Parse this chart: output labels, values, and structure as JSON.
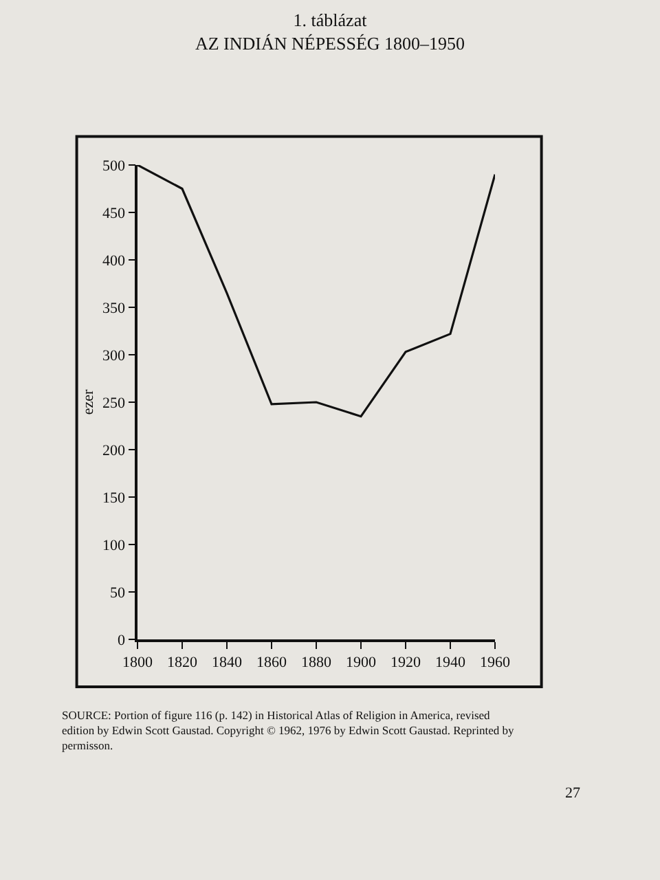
{
  "chart_data": {
    "type": "line",
    "title": "1. táblázat",
    "subtitle": "AZ INDIÁN NÉPESSÉG 1800–1950",
    "ylabel": "ezer",
    "x": [
      1800,
      1820,
      1840,
      1860,
      1880,
      1900,
      1920,
      1940,
      1960
    ],
    "series": [
      {
        "color": "#111111",
        "values": [
          500,
          475,
          365,
          248,
          250,
          235,
          303,
          322,
          490
        ]
      }
    ],
    "xlim": [
      1800,
      1960
    ],
    "xticks": [
      1800,
      1820,
      1840,
      1860,
      1880,
      1900,
      1920,
      1940,
      1960
    ],
    "ylim": [
      0,
      500
    ],
    "yticks": [
      0,
      50,
      100,
      150,
      200,
      250,
      300,
      350,
      400,
      450,
      500
    ],
    "grid": false,
    "marker": "none",
    "line_style": "solid",
    "annotations": [
      "SOURCE: Portion of figure 116 (p. 142) in Historical Atlas of Religion in America, revised edition by Edwin Scott Gaustad. Copyright © 1962, 1976 by Edwin Scott Gaustad. Reprinted by permisson.",
      "27"
    ]
  }
}
